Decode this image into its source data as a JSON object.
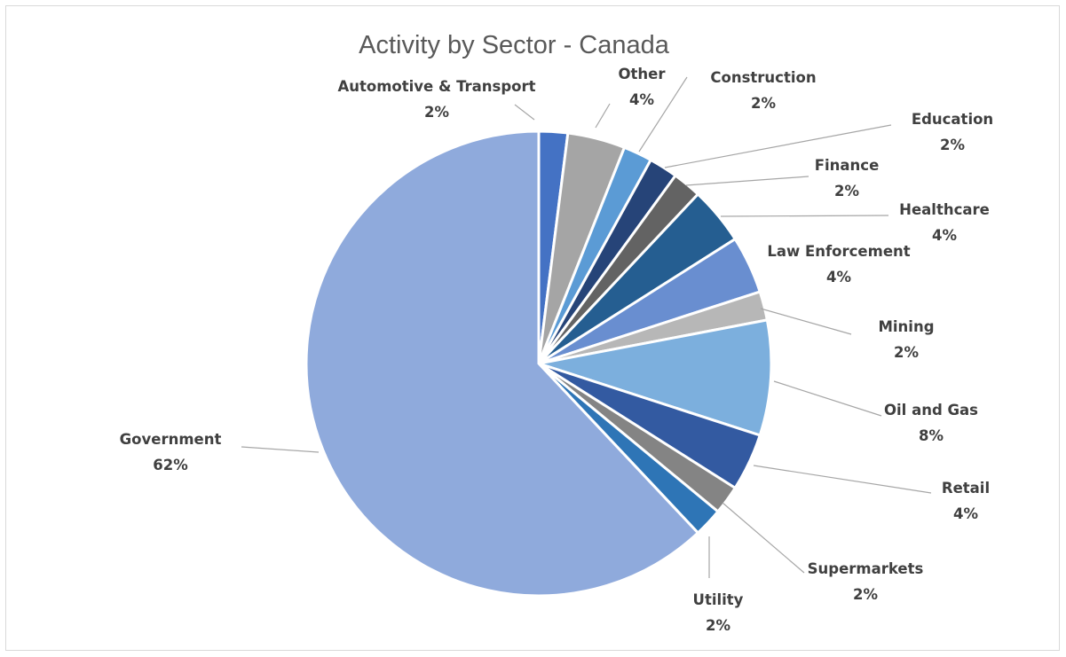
{
  "chart_data": {
    "type": "pie",
    "title": "Activity by Sector - Canada",
    "legend": "none",
    "slices": [
      {
        "label": "Automotive & Transport",
        "value": 2,
        "pct_label": "2%",
        "color": "#4472C4"
      },
      {
        "label": "Other",
        "value": 4,
        "pct_label": "4%",
        "color": "#A5A5A5"
      },
      {
        "label": "Construction",
        "value": 2,
        "pct_label": "2%",
        "color": "#5B9BD5"
      },
      {
        "label": "Education",
        "value": 2,
        "pct_label": "2%",
        "color": "#264478"
      },
      {
        "label": "Finance",
        "value": 2,
        "pct_label": "2%",
        "color": "#636363"
      },
      {
        "label": "Healthcare",
        "value": 4,
        "pct_label": "4%",
        "color": "#255E91"
      },
      {
        "label": "Law Enforcement",
        "value": 4,
        "pct_label": "4%",
        "color": "#698ED0"
      },
      {
        "label": "Mining",
        "value": 2,
        "pct_label": "2%",
        "color": "#B7B7B7"
      },
      {
        "label": "Oil and Gas",
        "value": 8,
        "pct_label": "8%",
        "color": "#7CAFDD"
      },
      {
        "label": "Retail",
        "value": 4,
        "pct_label": "4%",
        "color": "#335AA1"
      },
      {
        "label": "Supermarkets",
        "value": 2,
        "pct_label": "2%",
        "color": "#848484"
      },
      {
        "label": "Utility",
        "value": 2,
        "pct_label": "2%",
        "color": "#2E75B6"
      },
      {
        "label": "Government",
        "value": 62,
        "pct_label": "62%",
        "color": "#8FAADC"
      }
    ]
  }
}
